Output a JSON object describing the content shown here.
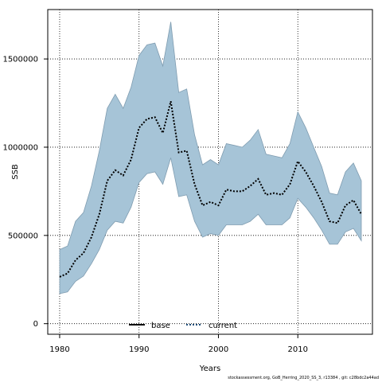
{
  "chart_data": {
    "type": "area",
    "xlabel": "Years",
    "ylabel": "SSB",
    "xlim": [
      1978.5,
      2019.4
    ],
    "ylim": [
      -60000,
      1780000
    ],
    "x_ticks": [
      1980,
      1990,
      2000,
      2010
    ],
    "y_ticks": [
      0,
      500000,
      1000000,
      1500000
    ],
    "y_tick_labels": [
      "0",
      "500000",
      "1000000",
      "1500000"
    ],
    "grid": true,
    "legend_placement": "bottom-center",
    "band_color": "#a6c4d7",
    "band_edge_color": "#7f9cb0",
    "x": [
      1980,
      1981,
      1982,
      1983,
      1984,
      1985,
      1986,
      1987,
      1988,
      1989,
      1990,
      1991,
      1992,
      1993,
      1994,
      1995,
      1996,
      1997,
      1998,
      1999,
      2000,
      2001,
      2002,
      2003,
      2004,
      2005,
      2006,
      2007,
      2008,
      2009,
      2010,
      2011,
      2012,
      2013,
      2014,
      2015,
      2016,
      2017,
      2018
    ],
    "series": [
      {
        "name": "current",
        "style": "dotted",
        "color": "#000000",
        "values": [
          265000,
          285000,
          360000,
          400000,
          490000,
          620000,
          810000,
          870000,
          840000,
          930000,
          1110000,
          1160000,
          1170000,
          1080000,
          1260000,
          970000,
          980000,
          790000,
          670000,
          690000,
          670000,
          760000,
          750000,
          750000,
          780000,
          820000,
          730000,
          740000,
          730000,
          790000,
          920000,
          860000,
          780000,
          690000,
          580000,
          570000,
          670000,
          700000,
          620000
        ],
        "upper": [
          420000,
          440000,
          580000,
          630000,
          780000,
          980000,
          1220000,
          1300000,
          1220000,
          1340000,
          1520000,
          1580000,
          1590000,
          1460000,
          1710000,
          1310000,
          1330000,
          1070000,
          900000,
          930000,
          900000,
          1020000,
          1010000,
          1000000,
          1040000,
          1100000,
          960000,
          950000,
          940000,
          1020000,
          1200000,
          1110000,
          1000000,
          890000,
          740000,
          730000,
          860000,
          910000,
          810000
        ],
        "lower": [
          170000,
          180000,
          240000,
          270000,
          340000,
          420000,
          530000,
          580000,
          570000,
          660000,
          800000,
          850000,
          860000,
          790000,
          940000,
          720000,
          730000,
          580000,
          490000,
          510000,
          500000,
          560000,
          560000,
          560000,
          580000,
          620000,
          560000,
          560000,
          560000,
          600000,
          710000,
          660000,
          600000,
          530000,
          450000,
          450000,
          520000,
          540000,
          470000
        ]
      }
    ],
    "legend": [
      {
        "label": "base",
        "style": "solid"
      },
      {
        "label": "current",
        "style": "dotted"
      }
    ]
  },
  "caption": "stockassessment.org,  GoB_Herring_2020_SS_3,  r13384 ,  git:  c28bdc2a44ad"
}
